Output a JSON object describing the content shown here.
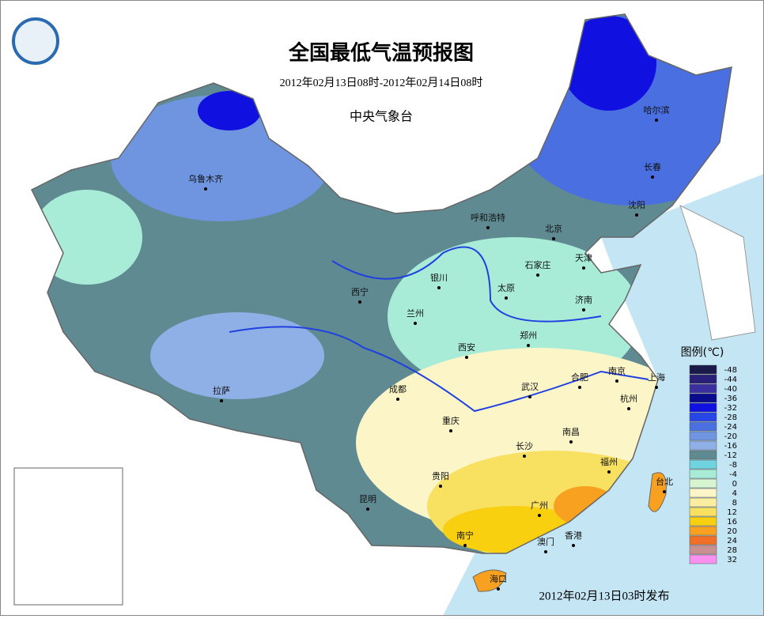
{
  "header": {
    "title": "全国最低气温预报图",
    "date_range": "2012年02月13日08时-2012年02月14日08时",
    "agency": "中央气象台"
  },
  "cities": [
    {
      "name": "乌鲁木齐"
    },
    {
      "name": "哈尔滨"
    },
    {
      "name": "长春"
    },
    {
      "name": "沈阳"
    },
    {
      "name": "呼和浩特"
    },
    {
      "name": "北京"
    },
    {
      "name": "天津"
    },
    {
      "name": "石家庄"
    },
    {
      "name": "太原"
    },
    {
      "name": "西宁"
    },
    {
      "name": "银川"
    },
    {
      "name": "兰州"
    },
    {
      "name": "济南"
    },
    {
      "name": "郑州"
    },
    {
      "name": "西安"
    },
    {
      "name": "合肥"
    },
    {
      "name": "南京"
    },
    {
      "name": "上海"
    },
    {
      "name": "武汉"
    },
    {
      "name": "杭州"
    },
    {
      "name": "成都"
    },
    {
      "name": "拉萨"
    },
    {
      "name": "重庆"
    },
    {
      "name": "长沙"
    },
    {
      "name": "南昌"
    },
    {
      "name": "福州"
    },
    {
      "name": "贵阳"
    },
    {
      "name": "昆明"
    },
    {
      "name": "台北"
    },
    {
      "name": "广州"
    },
    {
      "name": "南宁"
    },
    {
      "name": "澳门"
    },
    {
      "name": "香港"
    },
    {
      "name": "海口"
    }
  ],
  "legend": {
    "title": "图例(℃)",
    "items": [
      {
        "value": -48,
        "color": "#1a1a4a"
      },
      {
        "value": -44,
        "color": "#2a1f78"
      },
      {
        "value": -40,
        "color": "#3b2fa0"
      },
      {
        "value": -36,
        "color": "#0a0a8c"
      },
      {
        "value": -32,
        "color": "#1010e0"
      },
      {
        "value": -28,
        "color": "#2845e8"
      },
      {
        "value": -24,
        "color": "#4a6fe0"
      },
      {
        "value": -20,
        "color": "#6f95e0"
      },
      {
        "value": -16,
        "color": "#8fb0e6"
      },
      {
        "value": -12,
        "color": "#5f8a92"
      },
      {
        "value": -8,
        "color": "#6fd3e0"
      },
      {
        "value": -4,
        "color": "#a8ecd8"
      },
      {
        "value": 0,
        "color": "#d6f5d0"
      },
      {
        "value": 4,
        "color": "#fbf5c8"
      },
      {
        "value": 8,
        "color": "#fbeea0"
      },
      {
        "value": 12,
        "color": "#f8e060"
      },
      {
        "value": 16,
        "color": "#f8d010"
      },
      {
        "value": 20,
        "color": "#f8a020"
      },
      {
        "value": 24,
        "color": "#f07028"
      },
      {
        "value": 28,
        "color": "#c89090"
      },
      {
        "value": 32,
        "color": "#f890f0"
      }
    ]
  },
  "footer": "2012年02月13日03时发布"
}
